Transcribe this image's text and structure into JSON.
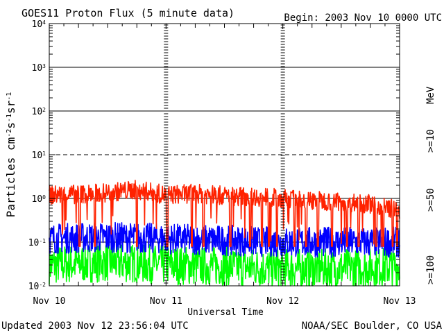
{
  "header": {
    "title": "GOES11 Proton Flux (5 minute data)",
    "begin": "Begin: 2003 Nov 10 0000 UTC"
  },
  "footer": {
    "updated": "Updated 2003 Nov 12 23:56:04 UTC",
    "credit": "NOAA/SEC Boulder, CO USA"
  },
  "colors": {
    "ge10": "#ff2200",
    "ge50": "#0000ff",
    "ge100": "#00ff00",
    "axis": "#000000"
  },
  "chart_data": {
    "type": "line",
    "title": "GOES11 Proton Flux (5 minute data)",
    "xlabel": "Universal Time",
    "ylabel_parts": {
      "base": "Particles cm",
      "e1": "-2",
      "s": "s",
      "e2": "-1",
      "sr": "sr",
      "e3": "-1"
    },
    "y_scale": "log",
    "ylim": [
      0.01,
      10000
    ],
    "y_ticks": [
      {
        "value": 0.01,
        "base": "10",
        "exp": "-2"
      },
      {
        "value": 0.1,
        "base": "10",
        "exp": "-1"
      },
      {
        "value": 1,
        "base": "10",
        "exp": "0"
      },
      {
        "value": 10,
        "base": "10",
        "exp": "1"
      },
      {
        "value": 100,
        "base": "10",
        "exp": "2"
      },
      {
        "value": 1000,
        "base": "10",
        "exp": "3"
      },
      {
        "value": 10000,
        "base": "10",
        "exp": "4"
      }
    ],
    "x_ticks": [
      "Nov 10",
      "Nov 11",
      "Nov 12",
      "Nov 13"
    ],
    "xlim_days": [
      0,
      3
    ],
    "reference_lines": [
      {
        "value": 1000,
        "style": "solid"
      },
      {
        "value": 100,
        "style": "solid"
      },
      {
        "value": 10,
        "style": "dashed"
      },
      {
        "value": 1,
        "style": "solid"
      },
      {
        "value": 0.1,
        "style": "solid"
      }
    ],
    "legend": {
      "unit": "MeV",
      "entries": [
        {
          "label": ">=10",
          "series": "ge10"
        },
        {
          "label": ">=50",
          "series": "ge50"
        },
        {
          "label": ">=100",
          "series": "ge100"
        }
      ]
    },
    "series": [
      {
        "key": "ge10",
        "color": "#ff2200",
        "x": [
          0,
          0.25,
          0.5,
          0.75,
          1,
          1.25,
          1.5,
          1.75,
          2,
          2.25,
          2.5,
          2.75,
          3
        ],
        "values": [
          1.2,
          1.25,
          1.35,
          1.6,
          1.2,
          1.3,
          1.15,
          1.1,
          1.0,
          0.9,
          0.85,
          0.75,
          0.55
        ],
        "dropouts": [
          0.26,
          0.39,
          0.75,
          1.01,
          1.22,
          1.32,
          1.55,
          1.72,
          1.82,
          1.88,
          1.95,
          2.1,
          2.2,
          2.3,
          2.42,
          2.55,
          2.65,
          2.8,
          2.86,
          2.94,
          2.98
        ],
        "min_value": 0.08
      },
      {
        "key": "ge50",
        "color": "#0000ff",
        "x": [
          0,
          0.5,
          1,
          1.5,
          2,
          2.5,
          3
        ],
        "values": [
          0.12,
          0.13,
          0.12,
          0.11,
          0.1,
          0.1,
          0.1
        ]
      },
      {
        "key": "ge100",
        "color": "#00ff00",
        "x": [
          0,
          0.5,
          1,
          1.5,
          2,
          2.5,
          3
        ],
        "values": [
          0.03,
          0.035,
          0.03,
          0.028,
          0.025,
          0.025,
          0.028
        ]
      }
    ]
  }
}
